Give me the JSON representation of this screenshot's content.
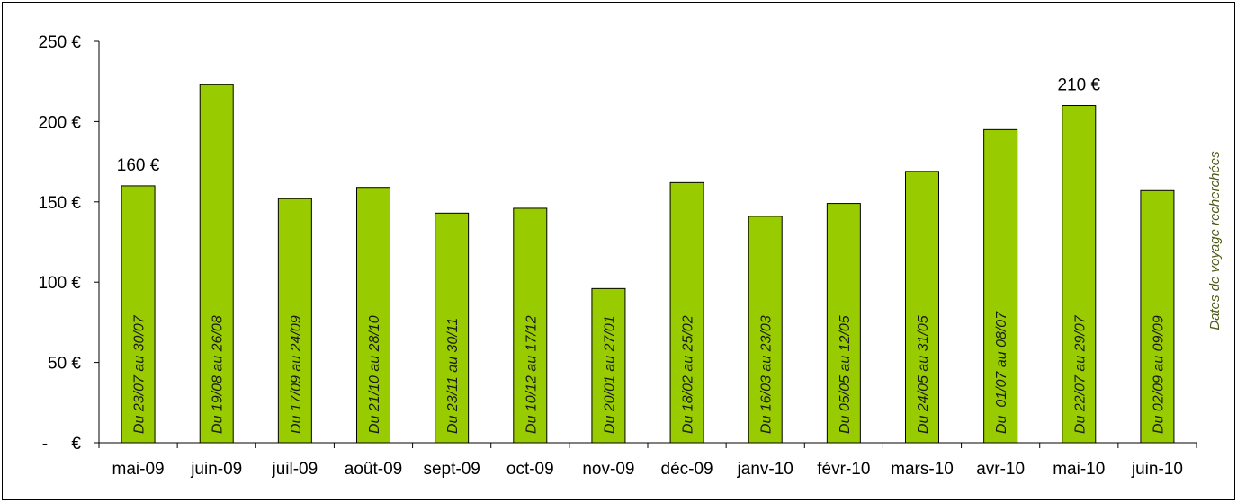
{
  "chart_data": {
    "type": "bar",
    "categories": [
      "mai-09",
      "juin-09",
      "juil-09",
      "août-09",
      "sept-09",
      "oct-09",
      "nov-09",
      "déc-09",
      "janv-10",
      "févr-10",
      "mars-10",
      "avr-10",
      "mai-10",
      "juin-10"
    ],
    "values": [
      160,
      223,
      152,
      159,
      143,
      146,
      96,
      162,
      141,
      149,
      169,
      195,
      210,
      157
    ],
    "bar_labels": [
      "Du 23/07 au 30/07",
      "Du 19/08 au 26/08",
      "Du 17/09 au 24/09",
      "Du 21/10 au 28/10",
      "Du 23/11 au 30/11",
      "Du 10/12 au 17/12",
      "Du 20/01 au 27/01",
      "Du 18/02 au 25/02",
      "Du 16/03 au 23/03",
      "Du 05/05 au 12/05",
      "Du 24/05 au 31/05",
      "Du  01/07 au 08/07",
      "Du 22/07 au 29/07",
      "Du 02/09 au 09/09"
    ],
    "data_labels": [
      {
        "index": 0,
        "text": "160 €"
      },
      {
        "index": 12,
        "text": "210 €"
      }
    ],
    "y_ticks": [
      {
        "value": 0,
        "label": "-     €"
      },
      {
        "value": 50,
        "label": "50 €"
      },
      {
        "value": 100,
        "label": "100 €"
      },
      {
        "value": 150,
        "label": "150 €"
      },
      {
        "value": 200,
        "label": "200 €"
      },
      {
        "value": 250,
        "label": "250 €"
      }
    ],
    "ylim": [
      0,
      250
    ],
    "title": "",
    "xlabel": "",
    "ylabel": "",
    "secondary_ylabel": "Dates de voyage recherchées",
    "grid": false,
    "legend": "none",
    "bar_color": "#99cc00",
    "bar_edge_color": "#000000"
  }
}
